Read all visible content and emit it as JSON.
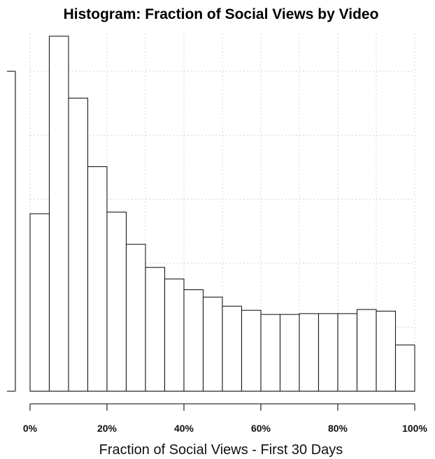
{
  "chart_data": {
    "type": "bar",
    "title": "Histogram: Fraction of Social Views by Video",
    "xlabel": "Fraction of Social Views - First 30 Days",
    "ylabel": "",
    "x_tick_labels": [
      "0%",
      "20%",
      "40%",
      "60%",
      "80%",
      "100%"
    ],
    "x_ticks": [
      0,
      20,
      40,
      60,
      80,
      100
    ],
    "xlim": [
      0,
      100
    ],
    "bin_width": 5,
    "bin_starts": [
      0,
      5,
      10,
      15,
      20,
      25,
      30,
      35,
      40,
      45,
      50,
      55,
      60,
      65,
      70,
      75,
      80,
      85,
      90,
      95
    ],
    "values": [
      215,
      430,
      355,
      272,
      217,
      178,
      150,
      136,
      123,
      114,
      103,
      98,
      93,
      93,
      94,
      94,
      94,
      99,
      97,
      56
    ],
    "ylim": [
      0,
      440
    ],
    "y_ticks": [
      0,
      77.5,
      155,
      232.5,
      310,
      387.5
    ],
    "y_tick_labels_visible": false,
    "grid": true
  }
}
